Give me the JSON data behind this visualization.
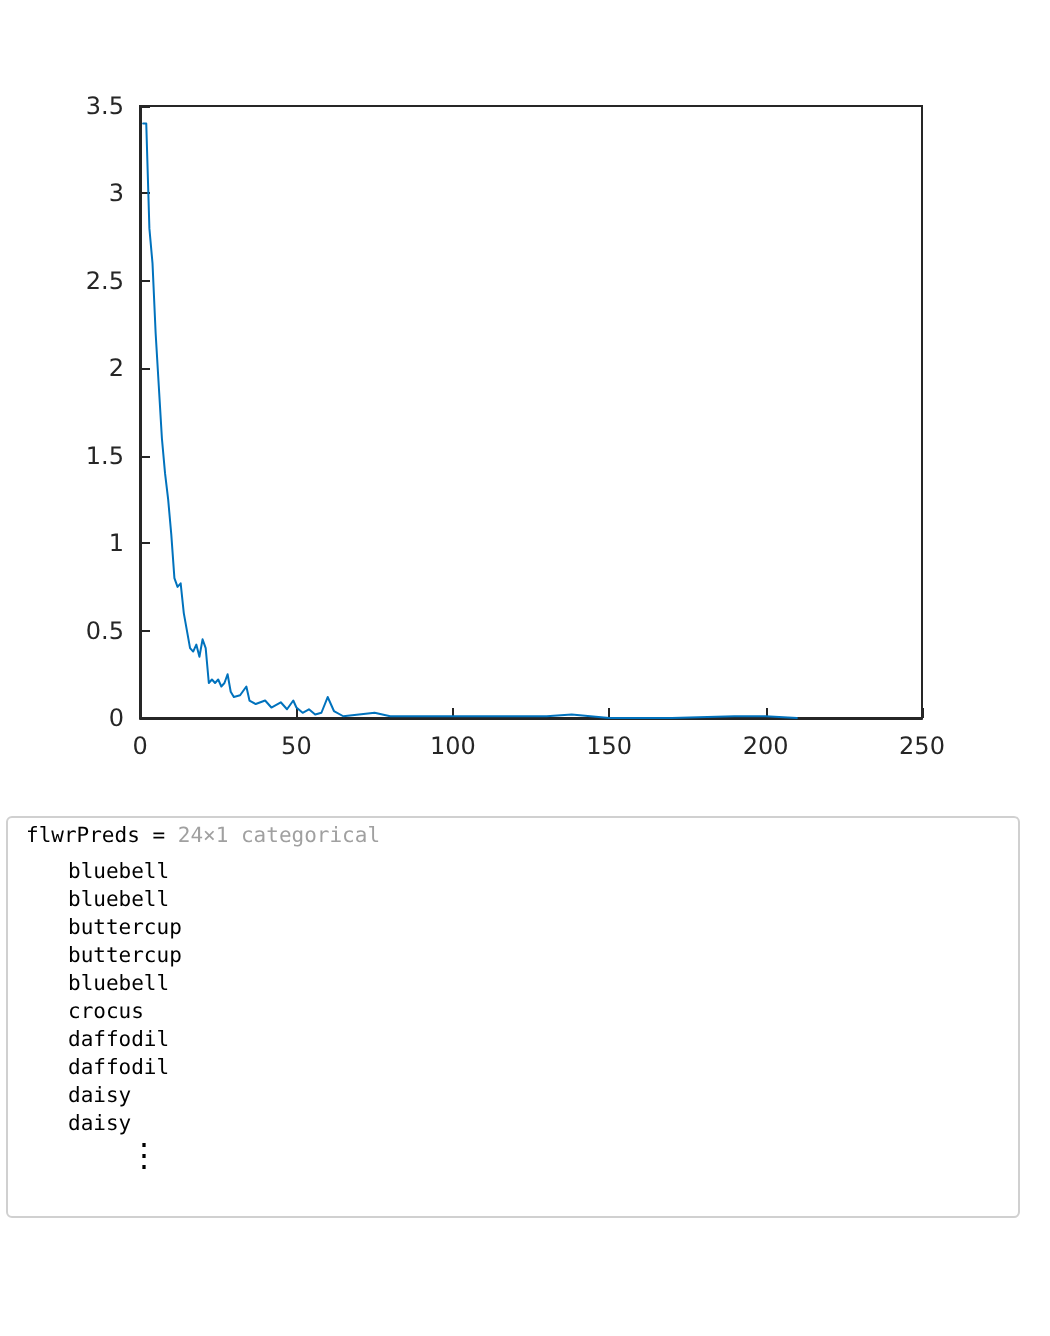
{
  "chart_data": [
    {
      "type": "line",
      "x": [
        1,
        2,
        3,
        4,
        5,
        6,
        7,
        8,
        9,
        10,
        11,
        12,
        13,
        14,
        15,
        16,
        17,
        18,
        19,
        20,
        21,
        22,
        23,
        24,
        25,
        26,
        27,
        28,
        29,
        30,
        32,
        34,
        35,
        37,
        40,
        42,
        45,
        47,
        49,
        50,
        52,
        54,
        56,
        58,
        60,
        62,
        65,
        70,
        75,
        80,
        90,
        100,
        110,
        120,
        130,
        138,
        150,
        170,
        190,
        200,
        210
      ],
      "series": [
        {
          "color": "#0072bd",
          "values": [
            3.4,
            3.4,
            2.8,
            2.6,
            2.2,
            1.9,
            1.6,
            1.4,
            1.25,
            1.05,
            0.8,
            0.75,
            0.77,
            0.6,
            0.5,
            0.4,
            0.38,
            0.42,
            0.35,
            0.45,
            0.4,
            0.2,
            0.22,
            0.2,
            0.22,
            0.18,
            0.2,
            0.25,
            0.15,
            0.12,
            0.13,
            0.18,
            0.1,
            0.08,
            0.1,
            0.06,
            0.09,
            0.05,
            0.1,
            0.06,
            0.03,
            0.05,
            0.02,
            0.03,
            0.12,
            0.04,
            0.01,
            0.02,
            0.03,
            0.01,
            0.01,
            0.01,
            0.01,
            0.01,
            0.01,
            0.02,
            0,
            0,
            0.01,
            0.01,
            0
          ]
        }
      ],
      "xlim": [
        0,
        250
      ],
      "xticks": [
        0,
        50,
        100,
        150,
        200,
        250
      ],
      "ylim": [
        0,
        3.5
      ],
      "yticks": [
        0,
        0.5,
        1,
        1.5,
        2,
        2.5,
        3,
        3.5
      ],
      "grid": false,
      "marker": "none",
      "line_style": "solid"
    },
    {
      "type": "other",
      "title": "flwrPreds =",
      "subtitle": "24×1 categorical",
      "annotations": [
        "bluebell",
        "bluebell",
        "buttercup",
        "buttercup",
        "bluebell",
        "crocus",
        "daffodil",
        "daffodil",
        "daisy",
        "daisy",
        "⋮"
      ]
    }
  ]
}
